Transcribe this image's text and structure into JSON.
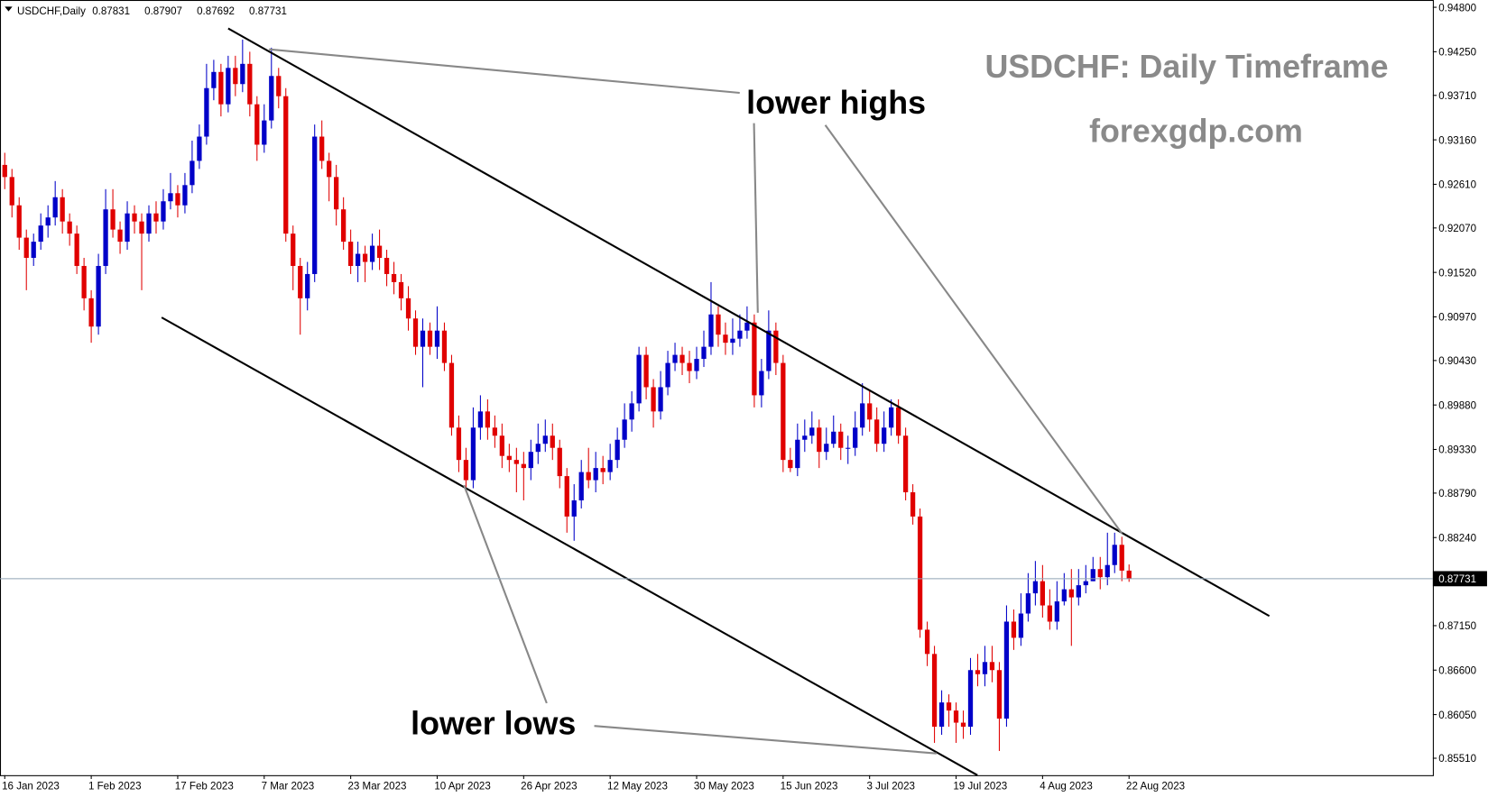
{
  "chart_data": {
    "type": "candlestick",
    "symbol": "USDCHF,Daily",
    "title": "USDCHF: Daily Timeframe",
    "subtitle": "forexgdp.com",
    "annotations": [
      "lower highs",
      "lower lows"
    ],
    "up_color": "#0000c8",
    "down_color": "#e00000",
    "categories": [
      "16 Jan 2023",
      null,
      null,
      null,
      null,
      null,
      null,
      null,
      null,
      null,
      null,
      null,
      "1 Feb 2023",
      null,
      null,
      null,
      null,
      null,
      null,
      null,
      null,
      null,
      null,
      null,
      "17 Feb 2023",
      null,
      null,
      null,
      null,
      null,
      null,
      null,
      null,
      null,
      null,
      null,
      "7 Mar 2023",
      null,
      null,
      null,
      null,
      null,
      null,
      null,
      null,
      null,
      null,
      null,
      "23 Mar 2023",
      null,
      null,
      null,
      null,
      null,
      null,
      null,
      null,
      null,
      null,
      null,
      "10 Apr 2023",
      null,
      null,
      null,
      null,
      null,
      null,
      null,
      null,
      null,
      null,
      null,
      "26 Apr 2023",
      null,
      null,
      null,
      null,
      null,
      null,
      null,
      null,
      null,
      null,
      null,
      "12 May 2023",
      null,
      null,
      null,
      null,
      null,
      null,
      null,
      null,
      null,
      null,
      null,
      "30 May 2023",
      null,
      null,
      null,
      null,
      null,
      null,
      null,
      null,
      null,
      null,
      null,
      "15 Jun 2023",
      null,
      null,
      null,
      null,
      null,
      null,
      null,
      null,
      null,
      null,
      null,
      "3 Jul 2023",
      null,
      null,
      null,
      null,
      null,
      null,
      null,
      null,
      null,
      null,
      null,
      "19 Jul 2023",
      null,
      null,
      null,
      null,
      null,
      null,
      null,
      null,
      null,
      null,
      null,
      "4 Aug 2023",
      null,
      null,
      null,
      null,
      null,
      null,
      null,
      null,
      null,
      null,
      null,
      "22 Aug 2023"
    ],
    "open": [
      0.9285,
      0.927,
      0.9235,
      0.9195,
      0.917,
      0.919,
      0.921,
      0.922,
      0.9245,
      0.9215,
      0.92,
      0.916,
      0.912,
      0.9085,
      0.916,
      0.923,
      0.9205,
      0.919,
      0.9225,
      0.9215,
      0.92,
      0.9225,
      0.9215,
      0.924,
      0.925,
      0.9235,
      0.926,
      0.929,
      0.932,
      0.938,
      0.94,
      0.936,
      0.9405,
      0.9385,
      0.941,
      0.936,
      0.931,
      0.934,
      0.9395,
      0.937,
      0.92,
      0.916,
      0.912,
      0.915,
      0.932,
      0.929,
      0.927,
      0.923,
      0.919,
      0.916,
      0.9175,
      0.9165,
      0.9185,
      0.917,
      0.915,
      0.914,
      0.912,
      0.9095,
      0.906,
      0.908,
      0.906,
      0.908,
      0.904,
      0.896,
      0.892,
      0.8895,
      0.896,
      0.898,
      0.896,
      0.895,
      0.8925,
      0.892,
      0.8915,
      0.891,
      0.893,
      0.894,
      0.895,
      0.8935,
      0.89,
      0.885,
      0.887,
      0.8905,
      0.8895,
      0.891,
      0.8905,
      0.892,
      0.8945,
      0.897,
      0.899,
      0.905,
      0.901,
      0.898,
      0.901,
      0.904,
      0.905,
      0.904,
      0.903,
      0.9045,
      0.906,
      0.91,
      0.9075,
      0.9065,
      0.907,
      0.908,
      0.909,
      0.9,
      0.903,
      0.908,
      0.904,
      0.892,
      0.891,
      0.8945,
      0.895,
      0.896,
      0.893,
      0.894,
      0.8955,
      0.8935,
      0.8935,
      0.896,
      0.899,
      0.897,
      0.894,
      0.896,
      0.8985,
      0.895,
      0.888,
      0.885,
      0.871,
      0.868,
      0.859,
      0.862,
      0.861,
      0.8595,
      0.859,
      0.866,
      0.8655,
      0.867,
      0.866,
      0.86,
      0.872,
      0.87,
      0.873,
      0.8755,
      0.877,
      0.874,
      0.872,
      0.8745,
      0.876,
      0.875,
      0.8765,
      0.877,
      0.8785,
      0.8775,
      0.879,
      0.8815,
      0.87831
    ],
    "high": [
      0.93,
      0.928,
      0.9245,
      0.9205,
      0.92,
      0.9225,
      0.9235,
      0.9265,
      0.9255,
      0.9225,
      0.921,
      0.917,
      0.913,
      0.9175,
      0.9255,
      0.9255,
      0.9215,
      0.924,
      0.9235,
      0.9225,
      0.9235,
      0.924,
      0.9255,
      0.9275,
      0.926,
      0.9275,
      0.9315,
      0.9335,
      0.941,
      0.9415,
      0.941,
      0.942,
      0.942,
      0.944,
      0.9425,
      0.937,
      0.936,
      0.943,
      0.9405,
      0.938,
      0.921,
      0.917,
      0.9165,
      0.9335,
      0.934,
      0.93,
      0.9285,
      0.9245,
      0.9205,
      0.919,
      0.9185,
      0.92,
      0.9205,
      0.918,
      0.9165,
      0.915,
      0.9135,
      0.9105,
      0.9095,
      0.909,
      0.911,
      0.909,
      0.905,
      0.8975,
      0.8935,
      0.8985,
      0.9,
      0.8995,
      0.8975,
      0.8965,
      0.894,
      0.8935,
      0.893,
      0.8945,
      0.8965,
      0.897,
      0.8965,
      0.8945,
      0.891,
      0.889,
      0.892,
      0.8935,
      0.893,
      0.8925,
      0.894,
      0.896,
      0.899,
      0.9005,
      0.906,
      0.906,
      0.902,
      0.903,
      0.9055,
      0.9065,
      0.906,
      0.9055,
      0.906,
      0.908,
      0.914,
      0.911,
      0.909,
      0.9095,
      0.91,
      0.911,
      0.91,
      0.9045,
      0.9105,
      0.909,
      0.905,
      0.8935,
      0.8965,
      0.897,
      0.898,
      0.897,
      0.896,
      0.8975,
      0.8965,
      0.895,
      0.898,
      0.9015,
      0.9005,
      0.8985,
      0.898,
      0.8995,
      0.8995,
      0.896,
      0.889,
      0.886,
      0.872,
      0.869,
      0.8635,
      0.863,
      0.862,
      0.861,
      0.8675,
      0.868,
      0.869,
      0.869,
      0.867,
      0.874,
      0.8735,
      0.8755,
      0.878,
      0.8795,
      0.879,
      0.876,
      0.877,
      0.878,
      0.8785,
      0.8785,
      0.879,
      0.88,
      0.88,
      0.883,
      0.883,
      0.8825,
      0.87907
    ],
    "low": [
      0.9255,
      0.922,
      0.918,
      0.913,
      0.916,
      0.918,
      0.9195,
      0.921,
      0.92,
      0.9185,
      0.915,
      0.9105,
      0.9065,
      0.9075,
      0.915,
      0.9195,
      0.9175,
      0.918,
      0.92,
      0.913,
      0.919,
      0.92,
      0.9205,
      0.923,
      0.922,
      0.9225,
      0.925,
      0.928,
      0.931,
      0.9365,
      0.9345,
      0.935,
      0.937,
      0.9375,
      0.9345,
      0.929,
      0.93,
      0.933,
      0.9355,
      0.919,
      0.913,
      0.9075,
      0.9105,
      0.914,
      0.928,
      0.924,
      0.921,
      0.918,
      0.915,
      0.914,
      0.914,
      0.9155,
      0.9155,
      0.9135,
      0.9125,
      0.9105,
      0.908,
      0.905,
      0.901,
      0.905,
      0.9045,
      0.903,
      0.895,
      0.8905,
      0.888,
      0.8885,
      0.8945,
      0.8945,
      0.8935,
      0.891,
      0.8905,
      0.888,
      0.887,
      0.8895,
      0.8915,
      0.893,
      0.892,
      0.8885,
      0.883,
      0.882,
      0.886,
      0.8885,
      0.888,
      0.889,
      0.8895,
      0.891,
      0.8935,
      0.8955,
      0.898,
      0.8995,
      0.896,
      0.897,
      0.9,
      0.903,
      0.9025,
      0.9015,
      0.902,
      0.9035,
      0.905,
      0.906,
      0.905,
      0.905,
      0.906,
      0.907,
      0.8985,
      0.8985,
      0.902,
      0.9025,
      0.8905,
      0.8905,
      0.89,
      0.893,
      0.894,
      0.891,
      0.892,
      0.8935,
      0.892,
      0.8915,
      0.8925,
      0.895,
      0.8955,
      0.893,
      0.893,
      0.895,
      0.894,
      0.887,
      0.884,
      0.87,
      0.8665,
      0.857,
      0.858,
      0.859,
      0.857,
      0.8575,
      0.858,
      0.864,
      0.864,
      0.8645,
      0.856,
      0.859,
      0.8685,
      0.869,
      0.872,
      0.874,
      0.8725,
      0.871,
      0.871,
      0.874,
      0.869,
      0.874,
      0.8755,
      0.877,
      0.876,
      0.8765,
      0.878,
      0.877,
      0.87692
    ],
    "close": [
      0.927,
      0.9235,
      0.9195,
      0.917,
      0.919,
      0.921,
      0.922,
      0.9245,
      0.9215,
      0.92,
      0.916,
      0.912,
      0.9085,
      0.916,
      0.923,
      0.9205,
      0.919,
      0.9225,
      0.9215,
      0.92,
      0.9225,
      0.9215,
      0.924,
      0.925,
      0.9235,
      0.926,
      0.929,
      0.932,
      0.938,
      0.94,
      0.936,
      0.9405,
      0.9385,
      0.941,
      0.936,
      0.931,
      0.934,
      0.9395,
      0.937,
      0.92,
      0.916,
      0.912,
      0.915,
      0.932,
      0.929,
      0.927,
      0.923,
      0.919,
      0.916,
      0.9175,
      0.9165,
      0.9185,
      0.917,
      0.915,
      0.914,
      0.912,
      0.9095,
      0.906,
      0.908,
      0.906,
      0.908,
      0.904,
      0.896,
      0.892,
      0.8895,
      0.896,
      0.898,
      0.896,
      0.895,
      0.8925,
      0.892,
      0.8915,
      0.891,
      0.893,
      0.894,
      0.895,
      0.8935,
      0.89,
      0.885,
      0.887,
      0.8905,
      0.8895,
      0.891,
      0.8905,
      0.892,
      0.8945,
      0.897,
      0.899,
      0.905,
      0.901,
      0.898,
      0.901,
      0.904,
      0.905,
      0.904,
      0.903,
      0.9045,
      0.906,
      0.91,
      0.9075,
      0.9065,
      0.907,
      0.908,
      0.909,
      0.9,
      0.903,
      0.908,
      0.904,
      0.892,
      0.891,
      0.8945,
      0.895,
      0.896,
      0.893,
      0.894,
      0.8955,
      0.8935,
      0.8935,
      0.896,
      0.899,
      0.897,
      0.894,
      0.896,
      0.8985,
      0.895,
      0.888,
      0.885,
      0.871,
      0.868,
      0.859,
      0.862,
      0.861,
      0.8595,
      0.859,
      0.866,
      0.8655,
      0.867,
      0.866,
      0.86,
      0.872,
      0.87,
      0.873,
      0.8755,
      0.877,
      0.874,
      0.872,
      0.8745,
      0.876,
      0.875,
      0.8765,
      0.877,
      0.8785,
      0.8775,
      0.879,
      0.8815,
      0.87831,
      0.87731
    ],
    "ylim": [
      0.9489,
      0.853
    ],
    "yticks": [
      {
        "value": 0.948,
        "label": "0.94800"
      },
      {
        "value": 0.9425,
        "label": "0.94250"
      },
      {
        "value": 0.9371,
        "label": "0.93710"
      },
      {
        "value": 0.9316,
        "label": "0.93160"
      },
      {
        "value": 0.9261,
        "label": "0.92610"
      },
      {
        "value": 0.9207,
        "label": "0.92070"
      },
      {
        "value": 0.9152,
        "label": "0.91520"
      },
      {
        "value": 0.9097,
        "label": "0.90970"
      },
      {
        "value": 0.9043,
        "label": "0.90430"
      },
      {
        "value": 0.8988,
        "label": "0.89880"
      },
      {
        "value": 0.8933,
        "label": "0.89330"
      },
      {
        "value": 0.8879,
        "label": "0.88790"
      },
      {
        "value": 0.8824,
        "label": "0.88240"
      },
      {
        "value": 0.8715,
        "label": "0.87150"
      },
      {
        "value": 0.866,
        "label": "0.86600"
      },
      {
        "value": 0.8605,
        "label": "0.86050"
      },
      {
        "value": 0.8551,
        "label": "0.85510"
      }
    ]
  }
}
